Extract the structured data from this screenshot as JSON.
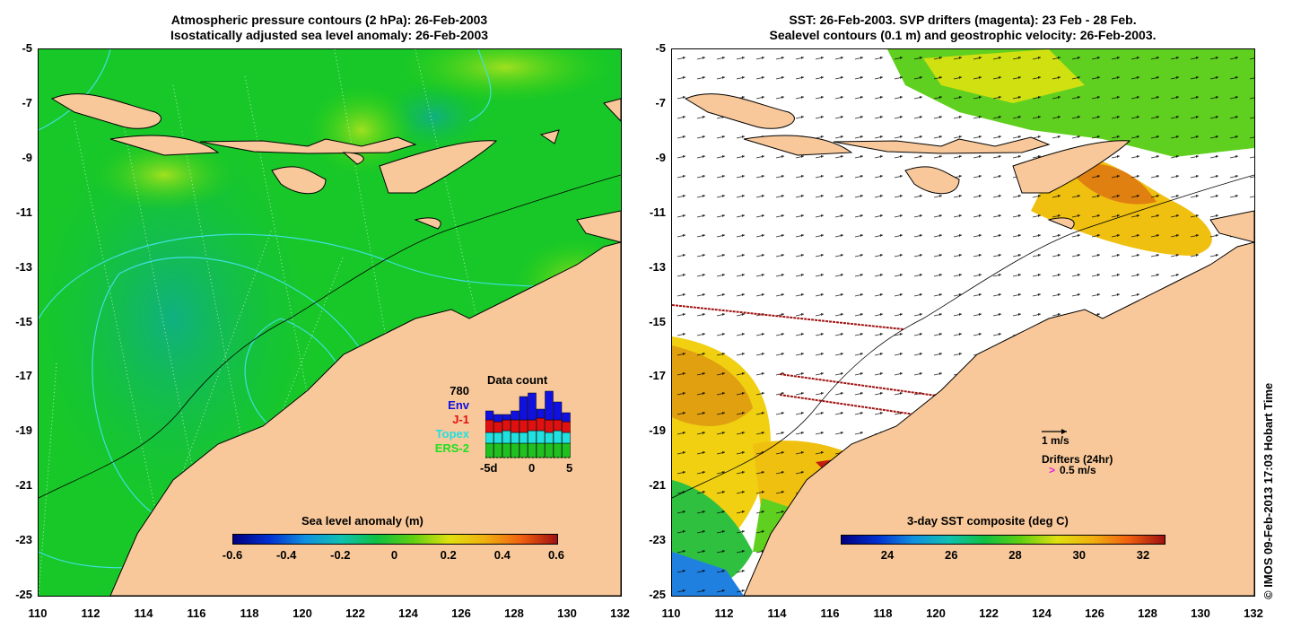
{
  "left_panel": {
    "title_line1": "Atmospheric pressure contours (2 hPa): 26-Feb-2003",
    "title_line2": "Isostatically adjusted sea level anomaly: 26-Feb-2003",
    "colorbar_title": "Sea level anomaly (m)",
    "colorbar_ticks": [
      "-0.6",
      "-0.4",
      "-0.2",
      "0",
      "0.2",
      "0.4",
      "0.6"
    ],
    "legend": {
      "count": "780",
      "env": "Env",
      "j1": "J-1",
      "topex": "Topex",
      "ers2": "ERS-2",
      "data_count_title": "Data count",
      "x_ticks": [
        "-5d",
        "0",
        "5"
      ],
      "colors": {
        "env": "#1010e0",
        "j1": "#e01010",
        "topex": "#20e0e0",
        "ers2": "#20c020"
      }
    }
  },
  "right_panel": {
    "title_line1": "SST: 26-Feb-2003. SVP drifters (magenta): 23 Feb - 28 Feb.",
    "title_line2": "Sealevel contours (0.1 m) and geostrophic velocity: 26-Feb-2003.",
    "colorbar_title": "3-day SST composite (deg C)",
    "colorbar_ticks": [
      "24",
      "26",
      "28",
      "30",
      "32"
    ],
    "velocity_key": "1 m/s",
    "drifters_label": "Drifters (24hr)",
    "drifters_speed": "0.5 m/s",
    "drifter_marker": ">"
  },
  "axes": {
    "y_ticks": [
      "-5",
      "-7",
      "-9",
      "-11",
      "-13",
      "-15",
      "-17",
      "-19",
      "-21",
      "-23",
      "-25"
    ],
    "x_ticks": [
      "110",
      "112",
      "114",
      "116",
      "118",
      "120",
      "122",
      "124",
      "126",
      "128",
      "130",
      "132"
    ]
  },
  "credit": "© IMOS 09-Feb-2013 17:03 Hobart Time",
  "colors": {
    "land": "#f8c89a",
    "ocean_green": "#10d010",
    "contour_cyan": "#40e0e0",
    "drifter_track": "#a01010",
    "drifter_magenta": "#e020e0"
  }
}
